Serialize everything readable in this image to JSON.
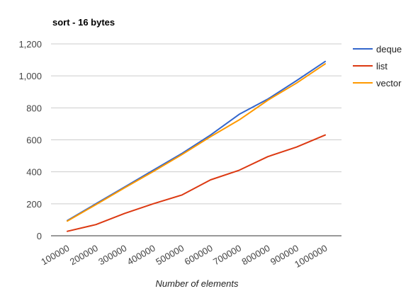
{
  "chart_data": {
    "type": "line",
    "title": "sort - 16 bytes",
    "xlabel": "Number of elements",
    "ylabel": "",
    "categories": [
      "100000",
      "200000",
      "300000",
      "400000",
      "500000",
      "600000",
      "700000",
      "800000",
      "900000",
      "1000000"
    ],
    "ylim": [
      0,
      1200
    ],
    "yticks": [
      0,
      200,
      400,
      600,
      800,
      1000,
      1200
    ],
    "ytick_labels": [
      "0",
      "200",
      "400",
      "600",
      "800",
      "1,000",
      "1,200"
    ],
    "grid": true,
    "legend": "right",
    "series": [
      {
        "name": "deque",
        "color": "#3366cc",
        "values": [
          95,
          200,
          305,
          410,
          515,
          630,
          760,
          855,
          970,
          1090
        ]
      },
      {
        "name": "list",
        "color": "#dc3912",
        "values": [
          28,
          70,
          140,
          200,
          255,
          350,
          410,
          495,
          555,
          630
        ]
      },
      {
        "name": "vector",
        "color": "#ff9900",
        "values": [
          92,
          195,
          300,
          402,
          508,
          620,
          725,
          848,
          955,
          1075
        ]
      }
    ]
  }
}
